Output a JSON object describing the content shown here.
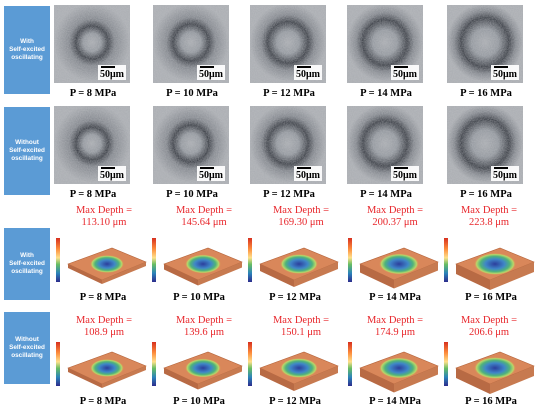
{
  "row_labels": {
    "with": [
      "With",
      "Self-excited",
      "oscillating"
    ],
    "without": [
      "Without",
      "Self-excited",
      "oscillating"
    ]
  },
  "scale_bar": "50μm",
  "pressures": [
    "P = 8 MPa",
    "P = 10 MPa",
    "P = 12 MPa",
    "P = 14 MPa",
    "P = 16 MPa"
  ],
  "depth_prefix": "Max Depth =",
  "depths_with": [
    "113.10 μm",
    "145.64 μm",
    "169.30 μm",
    "200.37 μm",
    "223.8 μm"
  ],
  "depths_without": [
    "108.9 μm",
    "139.6 μm",
    "150.1 μm",
    "174.9 μm",
    "206.6 μm"
  ],
  "colors": {
    "label_bg": "#5b9bd5",
    "depth_text": "#e8262b"
  }
}
